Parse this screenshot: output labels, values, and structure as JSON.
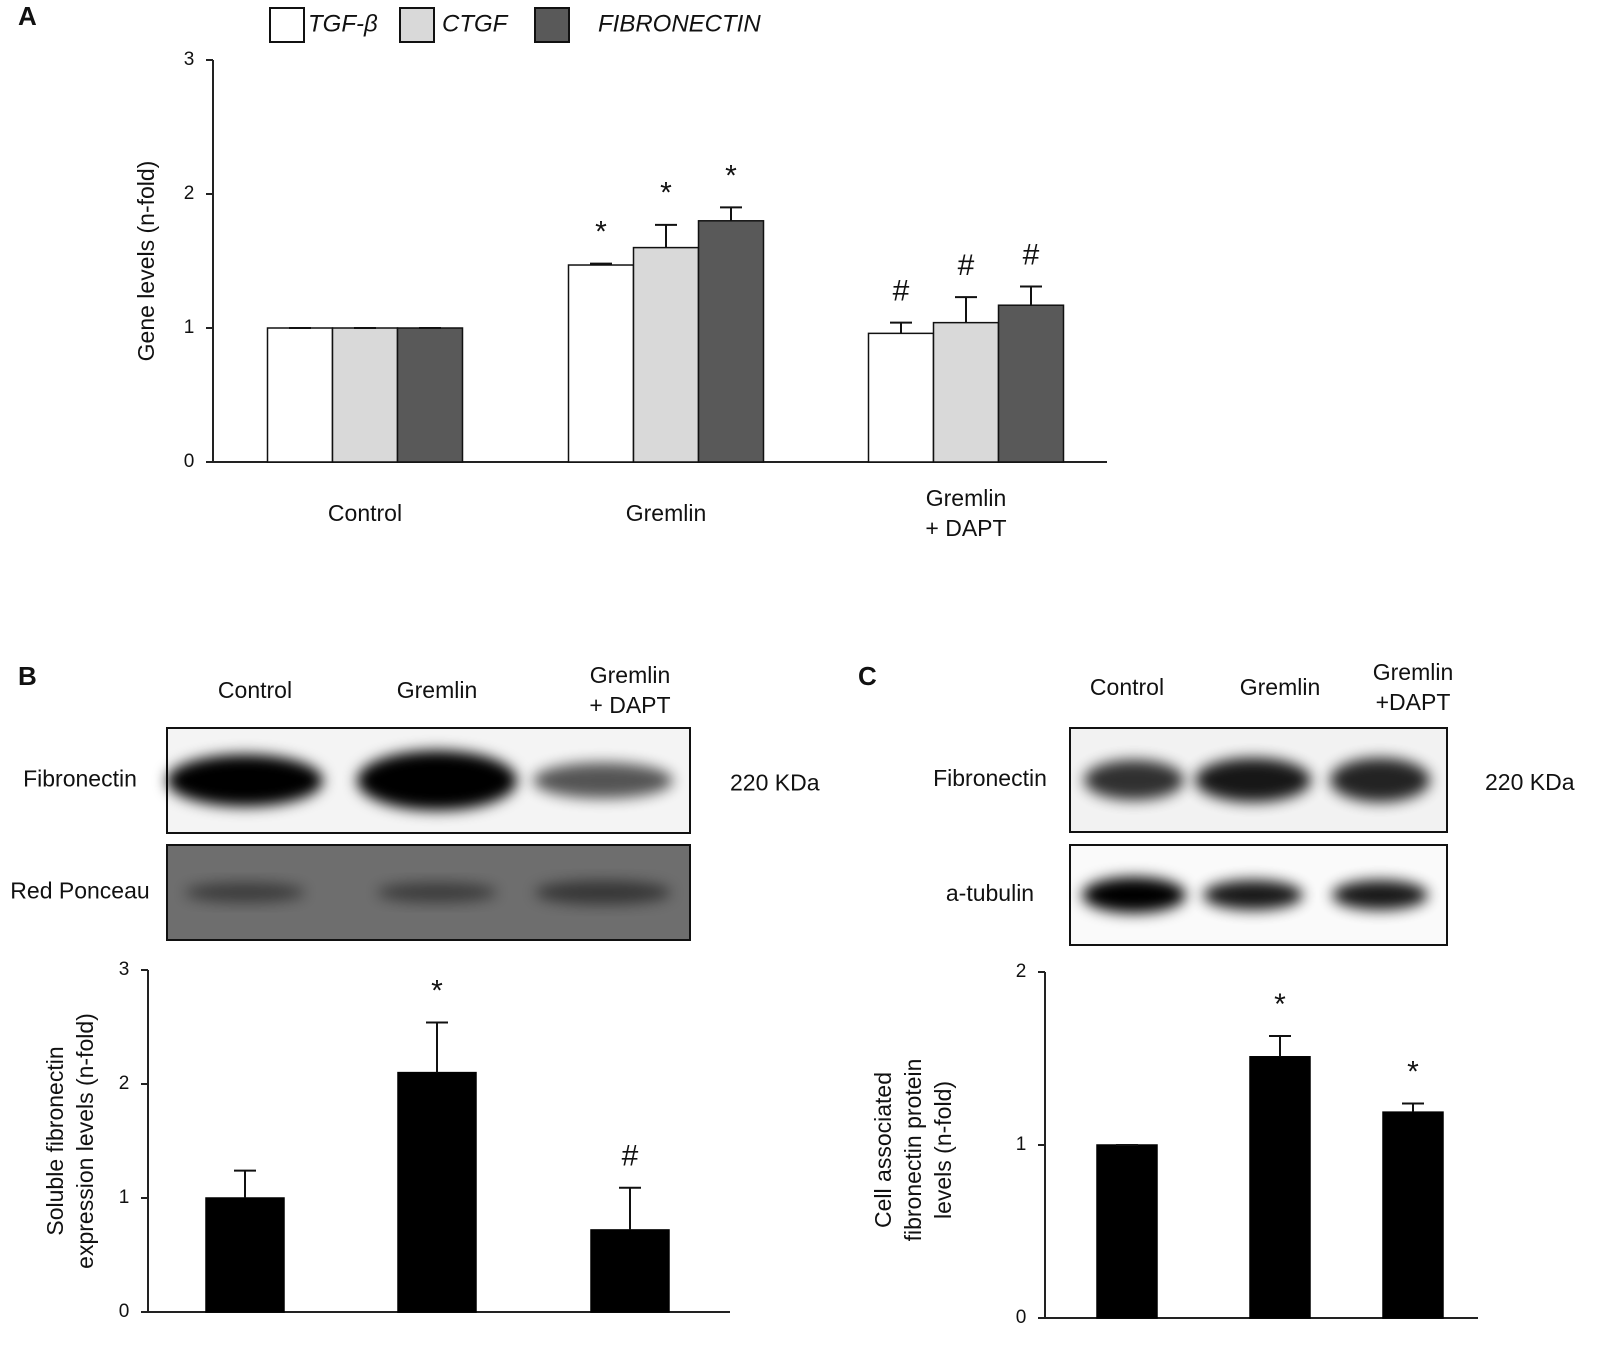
{
  "chart_data": [
    {
      "type": "bar",
      "panel": "A",
      "ylabel": "Gene levels (n-fold)",
      "categories": [
        "Control",
        "Gremlin",
        "Gremlin\n+ DAPT"
      ],
      "series": [
        {
          "name": "TGF-β",
          "color": "#ffffff",
          "values": [
            1.0,
            1.47,
            0.96
          ],
          "errors": [
            0.0,
            0.01,
            0.08
          ],
          "annotations": [
            null,
            "*",
            "#"
          ]
        },
        {
          "name": "CTGF",
          "color": "#d9d9d9",
          "values": [
            1.0,
            1.6,
            1.04
          ],
          "errors": [
            0.0,
            0.17,
            0.19
          ],
          "annotations": [
            null,
            "*",
            "#"
          ]
        },
        {
          "name": "FIBRONECTIN",
          "color": "#595959",
          "values": [
            1.0,
            1.8,
            1.17
          ],
          "errors": [
            0.0,
            0.1,
            0.14
          ],
          "annotations": [
            null,
            "*",
            "#"
          ]
        }
      ],
      "ylim": [
        0,
        3
      ],
      "yticks": [
        0,
        1,
        2,
        3
      ]
    },
    {
      "type": "bar",
      "panel": "B",
      "ylabel": "Soluble fibronectin\nexpression levels (n-fold)",
      "categories": [
        "Control",
        "Gremlin",
        "Gremlin\n+ DAPT"
      ],
      "series": [
        {
          "color": "#000000",
          "values": [
            1.0,
            2.1,
            0.72
          ],
          "errors": [
            0.24,
            0.44,
            0.37
          ],
          "annotations": [
            null,
            "*",
            "#"
          ]
        }
      ],
      "ylim": [
        0,
        3
      ],
      "yticks": [
        0,
        1,
        2,
        3
      ],
      "blot": {
        "rows": [
          "Fibronectin",
          "Red Ponceau"
        ],
        "marker": "220 KDa"
      }
    },
    {
      "type": "bar",
      "panel": "C",
      "ylabel": "Cell associated\nfibronectin protein\nlevels (n-fold)",
      "categories": [
        "Control",
        "Gremlin",
        "Gremlin\n+DAPT"
      ],
      "series": [
        {
          "color": "#000000",
          "values": [
            1.0,
            1.51,
            1.19
          ],
          "errors": [
            0.0,
            0.12,
            0.05
          ],
          "annotations": [
            null,
            "*",
            "*"
          ]
        }
      ],
      "ylim": [
        0,
        2
      ],
      "yticks": [
        0,
        1,
        2
      ],
      "blot": {
        "rows": [
          "Fibronectin",
          "a-tubulin"
        ],
        "marker": "220 KDa"
      }
    }
  ]
}
